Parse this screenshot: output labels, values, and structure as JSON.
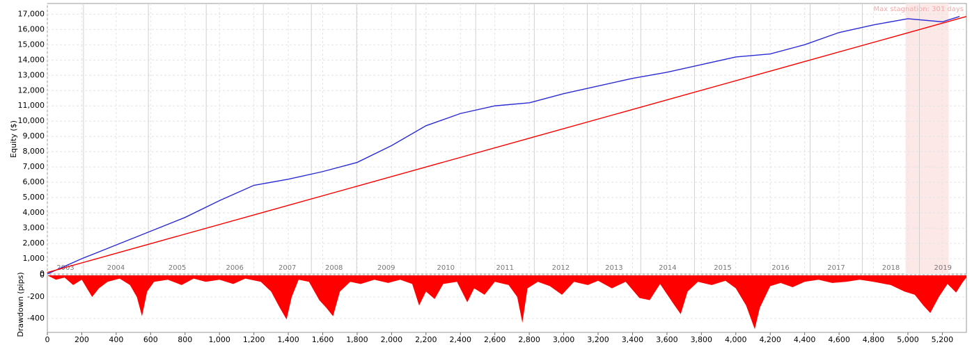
{
  "chart_data": [
    {
      "type": "line",
      "ylabel": "Equity ($)",
      "grid": true,
      "xlim": [
        0,
        5340
      ],
      "ylim": [
        0,
        17700
      ],
      "yticks": [
        0,
        {
          "value": 1000,
          "label": "1,000"
        },
        {
          "value": 2000,
          "label": "2,000"
        },
        {
          "value": 3000,
          "label": "3,000"
        },
        {
          "value": 4000,
          "label": "4,000"
        },
        {
          "value": 5000,
          "label": "5,000"
        },
        {
          "value": 6000,
          "label": "6,000"
        },
        {
          "value": 7000,
          "label": "7,000"
        },
        {
          "value": 8000,
          "label": "8,000"
        },
        {
          "value": 9000,
          "label": "9,000"
        },
        {
          "value": 10000,
          "label": "10,000"
        },
        {
          "value": 11000,
          "label": "11,000"
        },
        {
          "value": 12000,
          "label": "12,000"
        },
        {
          "value": 13000,
          "label": "13,000"
        },
        {
          "value": 14000,
          "label": "14,000"
        },
        {
          "value": 15000,
          "label": "15,000"
        },
        {
          "value": 16000,
          "label": "16,000"
        },
        {
          "value": 17000,
          "label": "17,000"
        }
      ],
      "year_labels": [
        "2003",
        "2004",
        "2005",
        "2006",
        "2007",
        "2008",
        "2009",
        "2010",
        "2011",
        "2012",
        "2013",
        "2014",
        "2015",
        "2016",
        "2017",
        "2018",
        "2019"
      ],
      "year_boundaries": [
        210,
        587,
        923,
        1255,
        1534,
        1797,
        2141,
        2489,
        2829,
        3137,
        3448,
        3760,
        4088,
        4432,
        4735,
        5067
      ],
      "stagnation_range": [
        4986,
        5237
      ],
      "annotation": "Max stagnation: 301 days",
      "series": [
        {
          "color": "#2a2ad6",
          "x": [
            0,
            200,
            400,
            600,
            800,
            1000,
            1200,
            1400,
            1600,
            1800,
            2000,
            2200,
            2400,
            2600,
            2800,
            3000,
            3200,
            3400,
            3600,
            3800,
            4000,
            4200,
            4400,
            4600,
            4800,
            5000,
            5200,
            5300
          ],
          "values": [
            0,
            1000,
            1900,
            2800,
            3700,
            4800,
            5800,
            6200,
            6700,
            7300,
            8400,
            9700,
            10500,
            11000,
            11200,
            11800,
            12300,
            12800,
            13200,
            13700,
            14200,
            14400,
            15000,
            15800,
            16300,
            16700,
            16500,
            16850
          ]
        },
        {
          "color": "#ff0000",
          "x": [
            0,
            5340
          ],
          "values": [
            100,
            16850
          ]
        }
      ]
    },
    {
      "type": "area",
      "ylabel": "Drawdown (pips)",
      "color": "#ff0000",
      "xlim": [
        0,
        5340
      ],
      "ylim": [
        -530,
        0
      ],
      "xticks": [
        0,
        200,
        400,
        600,
        800,
        {
          "value": 1000,
          "label": "1,000"
        },
        {
          "value": 1200,
          "label": "1,200"
        },
        {
          "value": 1400,
          "label": "1,400"
        },
        {
          "value": 1600,
          "label": "1,600"
        },
        {
          "value": 1800,
          "label": "1,800"
        },
        {
          "value": 2000,
          "label": "2,000"
        },
        {
          "value": 2200,
          "label": "2,200"
        },
        {
          "value": 2400,
          "label": "2,400"
        },
        {
          "value": 2600,
          "label": "2,600"
        },
        {
          "value": 2800,
          "label": "2,800"
        },
        {
          "value": 3000,
          "label": "3,000"
        },
        {
          "value": 3200,
          "label": "3,200"
        },
        {
          "value": 3400,
          "label": "3,400"
        },
        {
          "value": 3600,
          "label": "3,600"
        },
        {
          "value": 3800,
          "label": "3,800"
        },
        {
          "value": 4000,
          "label": "4,000"
        },
        {
          "value": 4200,
          "label": "4,200"
        },
        {
          "value": 4400,
          "label": "4,400"
        },
        {
          "value": 4600,
          "label": "4,600"
        },
        {
          "value": 4800,
          "label": "4,800"
        },
        {
          "value": 5000,
          "label": "5,000"
        },
        {
          "value": 5200,
          "label": "5,200"
        }
      ],
      "yticks": [
        0,
        -200,
        -400
      ],
      "x": [
        0,
        50,
        100,
        150,
        200,
        260,
        300,
        350,
        420,
        480,
        520,
        550,
        580,
        620,
        700,
        780,
        850,
        920,
        1000,
        1080,
        1150,
        1240,
        1300,
        1350,
        1390,
        1420,
        1460,
        1520,
        1580,
        1620,
        1660,
        1700,
        1760,
        1820,
        1900,
        1980,
        2050,
        2120,
        2160,
        2200,
        2250,
        2300,
        2380,
        2440,
        2480,
        2540,
        2600,
        2680,
        2730,
        2760,
        2790,
        2850,
        2920,
        2990,
        3060,
        3140,
        3200,
        3280,
        3360,
        3440,
        3500,
        3560,
        3640,
        3680,
        3720,
        3780,
        3860,
        3940,
        4000,
        4060,
        4110,
        4140,
        4200,
        4260,
        4330,
        4400,
        4480,
        4560,
        4640,
        4720,
        4800,
        4900,
        4980,
        5040,
        5090,
        5130,
        5180,
        5230,
        5280,
        5320,
        5340
      ],
      "values": [
        0,
        -40,
        -20,
        -90,
        -40,
        -200,
        -120,
        -60,
        -30,
        -90,
        -200,
        -380,
        -150,
        -60,
        -40,
        -90,
        -30,
        -60,
        -40,
        -80,
        -30,
        -60,
        -150,
        -300,
        -410,
        -200,
        -40,
        -60,
        -230,
        -300,
        -380,
        -150,
        -60,
        -80,
        -40,
        -70,
        -40,
        -80,
        -280,
        -150,
        -220,
        -80,
        -60,
        -250,
        -120,
        -180,
        -60,
        -90,
        -200,
        -440,
        -120,
        -60,
        -100,
        -180,
        -60,
        -90,
        -50,
        -120,
        -60,
        -210,
        -230,
        -80,
        -270,
        -360,
        -150,
        -60,
        -90,
        -50,
        -120,
        -280,
        -500,
        -300,
        -100,
        -70,
        -110,
        -60,
        -40,
        -70,
        -60,
        -40,
        -60,
        -90,
        -150,
        -180,
        -280,
        -350,
        -200,
        -80,
        -160,
        -60,
        -20
      ]
    }
  ]
}
